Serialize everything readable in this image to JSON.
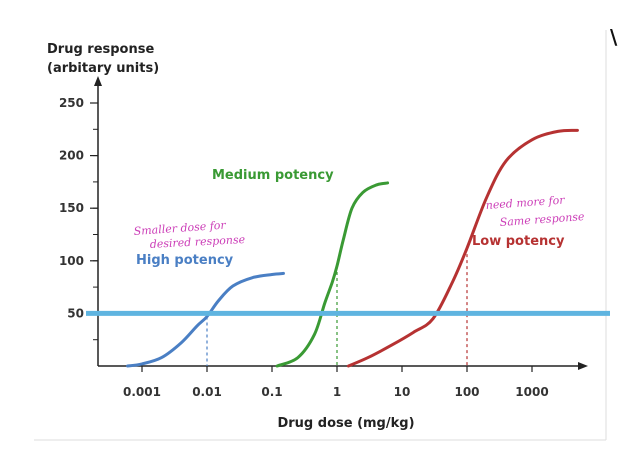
{
  "chart_data": {
    "type": "line",
    "ylabel_lines": [
      "Drug response",
      "(arbitary units)"
    ],
    "xlabel": "Drug dose (mg/kg)",
    "x_scale": "log",
    "xlim": [
      0.0004,
      6000
    ],
    "ylim": [
      0,
      250
    ],
    "x_ticks": [
      0.001,
      0.01,
      0.1,
      1,
      10,
      100,
      1000
    ],
    "x_tick_labels": [
      "0.001",
      "0.01",
      "0.1",
      "1",
      "10",
      "100",
      "1000"
    ],
    "y_ticks": [
      50,
      100,
      150,
      200,
      250
    ],
    "y_tick_labels": [
      "50",
      "100",
      "150",
      "200",
      "250"
    ],
    "grid": false,
    "series": [
      {
        "name": "High potency",
        "color": "#4a7fc4",
        "x": [
          0.0006,
          0.001,
          0.002,
          0.004,
          0.007,
          0.01,
          0.015,
          0.025,
          0.05,
          0.1,
          0.15
        ],
        "values": [
          0,
          2,
          8,
          22,
          38,
          47,
          62,
          76,
          84,
          87,
          88
        ],
        "ec50": 0.01
      },
      {
        "name": "Medium potency",
        "color": "#3a9a34",
        "x": [
          0.12,
          0.25,
          0.45,
          0.65,
          0.85,
          1,
          1.25,
          1.7,
          2.5,
          4,
          6
        ],
        "values": [
          0,
          8,
          30,
          60,
          80,
          95,
          120,
          150,
          165,
          172,
          174
        ],
        "ec50": 1
      },
      {
        "name": "Low potency",
        "color": "#b63232",
        "x": [
          1.5,
          3,
          7,
          15,
          30,
          60,
          100,
          200,
          400,
          1000,
          2500,
          5000
        ],
        "values": [
          0,
          8,
          20,
          32,
          45,
          80,
          112,
          160,
          195,
          215,
          223,
          224
        ],
        "ec50": 100
      }
    ],
    "reference_line": {
      "y": 50,
      "color": "#5fb4e0"
    },
    "annotations": [
      "Smaller dose for",
      "desired response",
      "need more for",
      "Same response"
    ]
  }
}
